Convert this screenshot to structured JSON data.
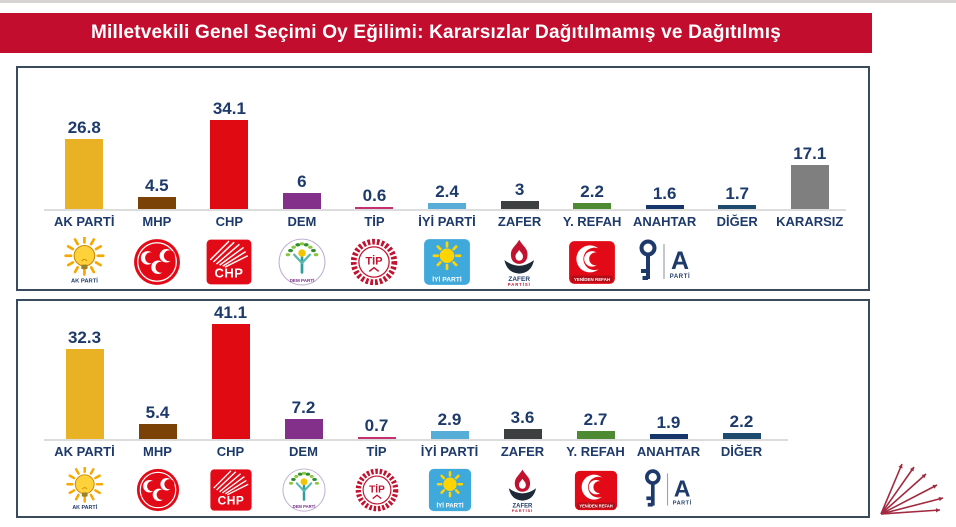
{
  "title": "Milletvekili Genel Seçimi Oy Eğilimi: Kararsızlar Dağıtılmamış ve Dağıtılmış",
  "colors": {
    "banner": "#c30d2e",
    "panel_border": "#394b5c",
    "label_text": "#1d3a6b",
    "axis_line": "#dcdcdc",
    "decoration_arrows": "#a12a40"
  },
  "chart_data": [
    {
      "id": "kararsizlar-dagitilmamis",
      "type": "bar",
      "categories": [
        "AK PARTİ",
        "MHP",
        "CHP",
        "DEM",
        "TİP",
        "İYİ PARTİ",
        "ZAFER",
        "Y. REFAH",
        "ANAHTAR",
        "DİĞER",
        "KARARSIZ"
      ],
      "values": [
        26.8,
        4.5,
        34.1,
        6,
        0.6,
        2.4,
        3,
        2.2,
        1.6,
        1.7,
        17.1
      ],
      "value_labels": [
        "26.8",
        "4.5",
        "34.1",
        "6",
        "0.6",
        "2.4",
        "3",
        "2.2",
        "1.6",
        "1.7",
        "17.1"
      ],
      "bar_colors": [
        "#e9b224",
        "#7a4207",
        "#e00b12",
        "#82308a",
        "#c53071",
        "#56aed8",
        "#3c4041",
        "#4e8a33",
        "#16356b",
        "#1e4a6e",
        "#7f7f7f"
      ],
      "logos": [
        "akparti-logo",
        "mhp-logo",
        "chp-logo",
        "dem-logo",
        "tip-logo",
        "iyi-logo",
        "zafer-logo",
        "yrefah-logo",
        "anahtar-logo",
        null,
        null
      ],
      "ylim": [
        0,
        45
      ],
      "grid": false,
      "legend": false
    },
    {
      "id": "kararsizlar-dagitilmis",
      "type": "bar",
      "categories": [
        "AK PARTİ",
        "MHP",
        "CHP",
        "DEM",
        "TİP",
        "İYİ PARTİ",
        "ZAFER",
        "Y. REFAH",
        "ANAHTAR",
        "DİĞER"
      ],
      "values": [
        32.3,
        5.4,
        41.1,
        7.2,
        0.7,
        2.9,
        3.6,
        2.7,
        1.9,
        2.2
      ],
      "value_labels": [
        "32.3",
        "5.4",
        "41.1",
        "7.2",
        "0.7",
        "2.9",
        "3.6",
        "2.7",
        "1.9",
        "2.2"
      ],
      "bar_colors": [
        "#e9b224",
        "#7a4207",
        "#e00b12",
        "#82308a",
        "#c53071",
        "#56aed8",
        "#3c4041",
        "#4e8a33",
        "#16356b",
        "#1e4a6e"
      ],
      "logos": [
        "akparti-logo",
        "mhp-logo",
        "chp-logo",
        "dem-logo",
        "tip-logo",
        "iyi-logo",
        "zafer-logo",
        "yrefah-logo",
        "anahtar-logo",
        null
      ],
      "ylim": [
        0,
        45
      ],
      "grid": false,
      "legend": false
    }
  ],
  "logo_texts": {
    "akparti": "AK PARTİ",
    "chp": "CHP",
    "dem": "DEM PARTİ",
    "tip": "TİP",
    "iyi": "İYİ PARTİ",
    "zafer_line1": "ZAFER",
    "zafer_line2": "PARTİSİ",
    "yrefah": "YENİDEN REFAH",
    "anahtar_letter": "A",
    "anahtar_text": "PARTİ"
  },
  "decoration": {
    "icon": "arrows-fan-icon",
    "arrow_count": 6
  }
}
